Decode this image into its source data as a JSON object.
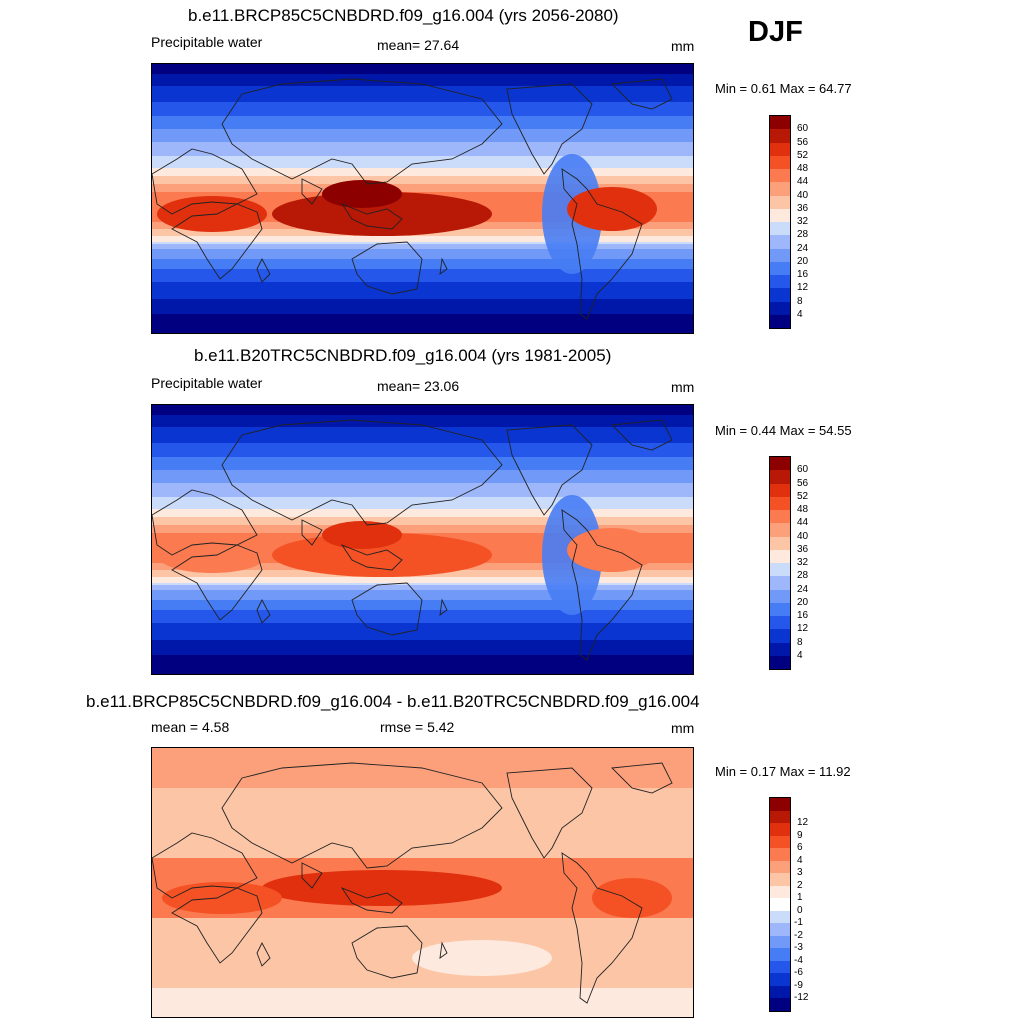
{
  "season": "DJF",
  "colors": {
    "main_scale": [
      "#000080",
      "#0018aa",
      "#0a35d0",
      "#2457ea",
      "#477df4",
      "#7099f8",
      "#9eb7fa",
      "#cbdcfb",
      "#fde9dd",
      "#fcc6a6",
      "#fca07c",
      "#fb7a50",
      "#f45224",
      "#e0300e",
      "#b81806",
      "#8c0000"
    ],
    "diff_scale": [
      "#000080",
      "#0018aa",
      "#0a35d0",
      "#2457ea",
      "#477df4",
      "#7099f8",
      "#9eb7fa",
      "#cbdcfb",
      "#ffffff",
      "#fde9dd",
      "#fcc6a6",
      "#fca07c",
      "#fb7a50",
      "#f45224",
      "#e0300e",
      "#b81806",
      "#8c0000"
    ],
    "coastline": "#222222"
  },
  "panels": [
    {
      "title": "b.e11.BRCP85C5CNBDRD.f09_g16.004 (yrs 2056-2080)",
      "left_label": "Precipitable water",
      "center_label": "mean=  27.64",
      "units": "mm",
      "minmax": "Min =   0.61 Max =  64.77",
      "colorbar_labels": [
        "4",
        "8",
        "12",
        "16",
        "20",
        "24",
        "28",
        "32",
        "36",
        "40",
        "44",
        "48",
        "52",
        "56",
        "60"
      ]
    },
    {
      "title": "b.e11.B20TRC5CNBDRD.f09_g16.004 (yrs 1981-2005)",
      "left_label": "Precipitable water",
      "center_label": "mean=  23.06",
      "units": "mm",
      "minmax": "Min =   0.44 Max =  54.55",
      "colorbar_labels": [
        "4",
        "8",
        "12",
        "16",
        "20",
        "24",
        "28",
        "32",
        "36",
        "40",
        "44",
        "48",
        "52",
        "56",
        "60"
      ]
    },
    {
      "title": "b.e11.BRCP85C5CNBDRD.f09_g16.004 - b.e11.B20TRC5CNBDRD.f09_g16.004",
      "left_label": "mean =   4.58",
      "center_label": "rmse =   5.42",
      "units": "mm",
      "minmax": "Min =  0.17 Max =  11.92",
      "colorbar_labels": [
        "-12",
        "-9",
        "-6",
        "-4",
        "-3",
        "-2",
        "-1",
        "0",
        "1",
        "2",
        "3",
        "4",
        "6",
        "9",
        "12"
      ]
    }
  ]
}
